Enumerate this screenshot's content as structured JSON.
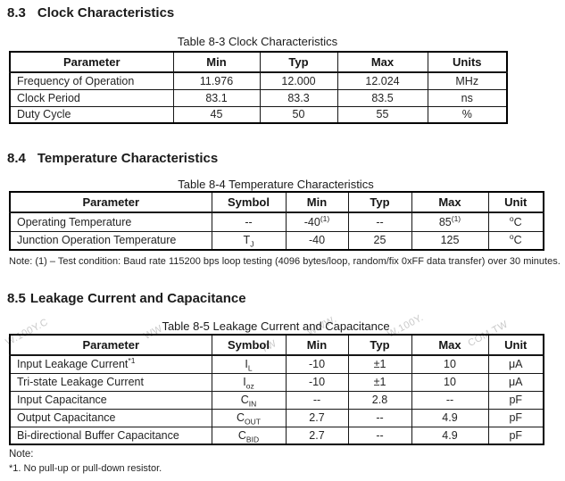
{
  "sections": [
    {
      "number": "8.3",
      "title": "Clock Characteristics"
    },
    {
      "number": "8.4",
      "title": "Temperature Characteristics"
    },
    {
      "number": "8.5",
      "title": "Leakage Current and Capacitance"
    }
  ],
  "table83": {
    "caption": "Table 8-3 Clock Characteristics",
    "headers": [
      "Parameter",
      "Min",
      "Typ",
      "Max",
      "Units"
    ],
    "rows": [
      {
        "param": "Frequency of Operation",
        "min": "11.976",
        "typ": "12.000",
        "max": "12.024",
        "units": "MHz"
      },
      {
        "param": "Clock Period",
        "min": "83.1",
        "typ": "83.3",
        "max": "83.5",
        "units": "ns"
      },
      {
        "param": "Duty Cycle",
        "min": "45",
        "typ": "50",
        "max": "55",
        "units": "%"
      }
    ]
  },
  "table84": {
    "caption": "Table 8-4 Temperature Characteristics",
    "headers": [
      "Parameter",
      "Symbol",
      "Min",
      "Typ",
      "Max",
      "Unit"
    ],
    "rows": [
      {
        "param": "Operating Temperature",
        "symbol": "--",
        "min": "-40",
        "min_sup": "(1)",
        "typ": "--",
        "max": "85",
        "max_sup": "(1)",
        "unit_sup": "o",
        "unit": "C"
      },
      {
        "param": "Junction Operation Temperature",
        "symbol": "T",
        "symbol_sub": "J",
        "min": "-40",
        "typ": "25",
        "max": "125",
        "unit_sup": "o",
        "unit": "C"
      }
    ],
    "note": "Note: (1) – Test condition: Baud rate 115200 bps loop testing (4096 bytes/loop, random/fix 0xFF data transfer) over 30 minutes."
  },
  "table85": {
    "caption": "Table 8-5 Leakage Current and Capacitance",
    "headers": [
      "Parameter",
      "Symbol",
      "Min",
      "Typ",
      "Max",
      "Unit"
    ],
    "rows": [
      {
        "param": "Input Leakage Current",
        "param_sup": "*1",
        "symbol": "I",
        "symbol_sub": "L",
        "min": "-10",
        "typ": "±1",
        "max": "10",
        "unit": "μA"
      },
      {
        "param": "Tri-state Leakage Current",
        "symbol": "I",
        "symbol_sub": "oz",
        "min": "-10",
        "typ": "±1",
        "max": "10",
        "unit": "μA"
      },
      {
        "param": "Input Capacitance",
        "symbol": "C",
        "symbol_sub": "IN",
        "min": "--",
        "typ": "2.8",
        "max": "--",
        "unit": "pF"
      },
      {
        "param": "Output Capacitance",
        "symbol": "C",
        "symbol_sub": "OUT",
        "min": "2.7",
        "typ": "--",
        "max": "4.9",
        "unit": "pF"
      },
      {
        "param": "Bi-directional Buffer Capacitance",
        "symbol": "C",
        "symbol_sub": "BID",
        "min": "2.7",
        "typ": "--",
        "max": "4.9",
        "unit": "pF"
      }
    ],
    "note_label": "Note:",
    "footnote": "*1. No pull-up or pull-down resistor."
  },
  "watermark": {
    "color": "#c9c9c9",
    "fragments": [
      "W.100Y.C",
      "WW",
      "WWW.",
      "W.100Y.",
      "COM.TW",
      "TW"
    ]
  }
}
